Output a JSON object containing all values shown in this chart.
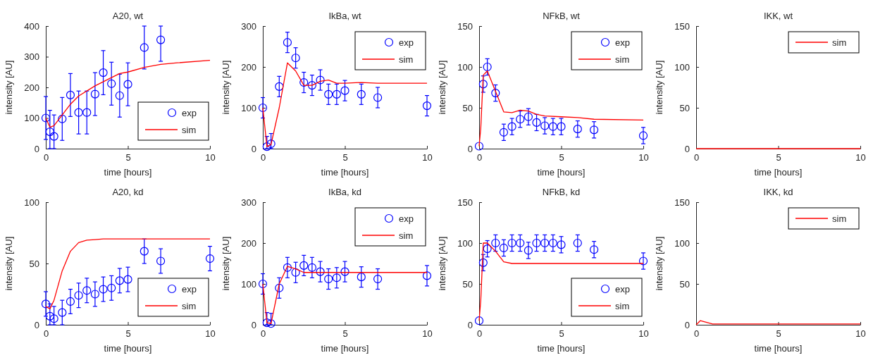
{
  "chart_data": [
    {
      "type": "scatter",
      "title": "A20, wt",
      "xlabel": "time [hours]",
      "ylabel": "intensity [AU]",
      "xlim": [
        0,
        10
      ],
      "xticks": [
        0,
        5,
        10
      ],
      "ylim": [
        0,
        400
      ],
      "yticks": [
        0,
        100,
        200,
        300,
        400
      ],
      "legend": "bottom right",
      "series": [
        {
          "name": "exp",
          "marker": "circle",
          "color": "#0000ff",
          "x": [
            0,
            0.25,
            0.5,
            1,
            1.5,
            2,
            2.5,
            3,
            3.5,
            4,
            4.5,
            5,
            6,
            7
          ],
          "values": [
            100,
            55,
            40,
            97,
            175,
            118,
            118,
            178,
            248,
            212,
            173,
            210,
            330,
            355
          ],
          "errors": [
            70,
            [
              0,
              125
            ],
            [
              0,
              110
            ],
            70,
            70,
            70,
            70,
            70,
            72,
            70,
            70,
            70,
            [
              260,
              400
            ],
            [
              285,
              400
            ]
          ]
        },
        {
          "name": "sim",
          "type": "line",
          "marker": "none",
          "color": "#ff0000",
          "x": [
            0,
            0.25,
            0.5,
            1,
            1.5,
            2,
            3,
            4,
            4.5,
            5,
            6,
            7,
            8,
            10
          ],
          "values": [
            100,
            70,
            75,
            110,
            145,
            172,
            205,
            232,
            245,
            250,
            265,
            275,
            280,
            288
          ]
        }
      ]
    },
    {
      "type": "scatter",
      "title": "IkBa, wt",
      "xlabel": "time [hours]",
      "ylabel": "intensity [AU]",
      "xlim": [
        0,
        10
      ],
      "xticks": [
        0,
        5,
        10
      ],
      "ylim": [
        0,
        300
      ],
      "yticks": [
        0,
        100,
        200,
        300
      ],
      "legend": "top right",
      "series": [
        {
          "name": "exp",
          "marker": "circle",
          "color": "#0000ff",
          "x": [
            0,
            0.25,
            0.5,
            1,
            1.5,
            2,
            2.5,
            3,
            3.5,
            4,
            4.5,
            5,
            6,
            7,
            10
          ],
          "values": [
            100,
            5,
            12,
            152,
            260,
            222,
            162,
            155,
            168,
            133,
            133,
            142,
            133,
            125,
            105
          ],
          "errors": [
            25,
            [
              0,
              30
            ],
            [
              0,
              37
            ],
            25,
            25,
            25,
            25,
            25,
            25,
            25,
            25,
            25,
            25,
            25,
            25
          ]
        },
        {
          "name": "sim",
          "type": "line",
          "marker": "none",
          "color": "#ff0000",
          "x": [
            0,
            0.25,
            0.5,
            1,
            1.5,
            2,
            2.5,
            3,
            3.5,
            4,
            4.5,
            5,
            6,
            7,
            10
          ],
          "values": [
            100,
            5,
            10,
            100,
            210,
            190,
            155,
            155,
            165,
            168,
            160,
            160,
            162,
            160,
            160
          ]
        }
      ]
    },
    {
      "type": "scatter",
      "title": "NFkB, wt",
      "xlabel": "time [hours]",
      "ylabel": "intensity [AU]",
      "xlim": [
        0,
        10
      ],
      "xticks": [
        0,
        5,
        10
      ],
      "ylim": [
        0,
        150
      ],
      "yticks": [
        0,
        50,
        100,
        150
      ],
      "legend": "top right",
      "series": [
        {
          "name": "exp",
          "marker": "circle",
          "color": "#0000ff",
          "x": [
            0,
            0.25,
            0.5,
            1,
            1.5,
            2,
            2.5,
            3,
            3.5,
            4,
            4.5,
            5,
            6,
            7,
            10
          ],
          "values": [
            3,
            79,
            100,
            68,
            20,
            27,
            36,
            39,
            32,
            28,
            27,
            27,
            24,
            23,
            16
          ],
          "errors": [
            null,
            10,
            10,
            10,
            10,
            10,
            10,
            10,
            10,
            10,
            10,
            10,
            10,
            10,
            10
          ]
        },
        {
          "name": "sim",
          "type": "line",
          "marker": "none",
          "color": "#ff0000",
          "x": [
            0,
            0.1,
            0.25,
            0.5,
            1,
            1.5,
            2,
            2.5,
            3,
            3.5,
            4,
            5,
            6,
            7,
            10
          ],
          "values": [
            3,
            25,
            90,
            95,
            70,
            45,
            44,
            47,
            46,
            42,
            40,
            39,
            38,
            36,
            35
          ]
        }
      ]
    },
    {
      "type": "line",
      "title": "IKK, wt",
      "xlabel": "time [hours]",
      "ylabel": "intensity [AU]",
      "xlim": [
        0,
        10
      ],
      "xticks": [
        0,
        5,
        10
      ],
      "ylim": [
        0,
        150
      ],
      "yticks": [
        0,
        50,
        100,
        150
      ],
      "legend": "top right",
      "series": [
        {
          "name": "sim",
          "marker": "none",
          "color": "#ff0000",
          "x": [
            0,
            10
          ],
          "values": [
            0,
            0
          ]
        }
      ]
    },
    {
      "type": "scatter",
      "title": "A20, kd",
      "xlabel": "time [hours]",
      "ylabel": "intensity [AU]",
      "xlim": [
        0,
        10
      ],
      "xticks": [
        0,
        5,
        10
      ],
      "ylim": [
        0,
        100
      ],
      "yticks": [
        0,
        50,
        100
      ],
      "legend": "bottom right",
      "series": [
        {
          "name": "exp",
          "marker": "circle",
          "color": "#0000ff",
          "x": [
            0,
            0.25,
            0.5,
            1,
            1.5,
            2,
            2.5,
            3,
            3.5,
            4,
            4.5,
            5,
            6,
            7,
            10
          ],
          "values": [
            17,
            7,
            5,
            10,
            19,
            24,
            28,
            25,
            29,
            30,
            36,
            37,
            60,
            52,
            54
          ],
          "errors": [
            10,
            [
              0,
              17
            ],
            [
              0,
              15
            ],
            [
              0,
              20
            ],
            10,
            10,
            10,
            10,
            10,
            10,
            10,
            10,
            10,
            10,
            10
          ]
        },
        {
          "name": "sim",
          "type": "line",
          "marker": "none",
          "color": "#ff0000",
          "x": [
            0,
            0.25,
            0.5,
            1,
            1.5,
            2,
            2.5,
            3,
            3.5,
            10
          ],
          "values": [
            15,
            13,
            20,
            44,
            60,
            67,
            69,
            69.5,
            70,
            70
          ]
        }
      ]
    },
    {
      "type": "scatter",
      "title": "IkBa, kd",
      "xlabel": "time [hours]",
      "ylabel": "intensity [AU]",
      "xlim": [
        0,
        10
      ],
      "xticks": [
        0,
        5,
        10
      ],
      "ylim": [
        0,
        300
      ],
      "yticks": [
        0,
        100,
        200,
        300
      ],
      "legend": "top right",
      "series": [
        {
          "name": "exp",
          "marker": "circle",
          "color": "#0000ff",
          "x": [
            0,
            0.25,
            0.5,
            1,
            1.5,
            2,
            2.5,
            3,
            3.5,
            4,
            4.5,
            5,
            6,
            7,
            10
          ],
          "values": [
            100,
            5,
            3,
            90,
            140,
            128,
            145,
            140,
            130,
            112,
            115,
            130,
            117,
            112,
            120
          ],
          "errors": [
            25,
            [
              0,
              30
            ],
            [
              0,
              28
            ],
            25,
            25,
            25,
            25,
            25,
            25,
            25,
            25,
            25,
            25,
            25,
            25
          ]
        },
        {
          "name": "sim",
          "type": "line",
          "marker": "none",
          "color": "#ff0000",
          "x": [
            0,
            0.25,
            0.5,
            1,
            1.5,
            2,
            2.5,
            3,
            10
          ],
          "values": [
            100,
            5,
            3,
            100,
            143,
            137,
            128,
            128,
            128
          ]
        }
      ]
    },
    {
      "type": "scatter",
      "title": "NFkB, kd",
      "xlabel": "time [hours]",
      "ylabel": "intensity [AU]",
      "xlim": [
        0,
        10
      ],
      "xticks": [
        0,
        5,
        10
      ],
      "ylim": [
        0,
        150
      ],
      "yticks": [
        0,
        50,
        100,
        150
      ],
      "legend": "bottom right",
      "series": [
        {
          "name": "exp",
          "marker": "circle",
          "color": "#0000ff",
          "x": [
            0,
            0.25,
            0.5,
            1,
            1.5,
            2,
            2.5,
            3,
            3.5,
            4,
            4.5,
            5,
            6,
            7,
            10
          ],
          "values": [
            5,
            76,
            93,
            100,
            94,
            100,
            100,
            91,
            100,
            100,
            100,
            98,
            100,
            92,
            78
          ],
          "errors": [
            null,
            10,
            10,
            10,
            10,
            10,
            10,
            10,
            10,
            10,
            10,
            10,
            10,
            10,
            10
          ]
        },
        {
          "name": "sim",
          "type": "line",
          "marker": "none",
          "color": "#ff0000",
          "x": [
            0,
            0.1,
            0.25,
            0.5,
            1,
            1.5,
            2,
            10
          ],
          "values": [
            5,
            30,
            100,
            100,
            90,
            77,
            75,
            75
          ]
        }
      ]
    },
    {
      "type": "line",
      "title": "IKK, kd",
      "xlabel": "time [hours]",
      "ylabel": "intensity [AU]",
      "xlim": [
        0,
        10
      ],
      "xticks": [
        0,
        5,
        10
      ],
      "ylim": [
        0,
        150
      ],
      "yticks": [
        0,
        50,
        100,
        150
      ],
      "legend": "top right",
      "series": [
        {
          "name": "sim",
          "marker": "none",
          "color": "#ff0000",
          "x": [
            0,
            0.25,
            1,
            10
          ],
          "values": [
            0,
            5,
            1,
            1
          ]
        }
      ]
    }
  ]
}
